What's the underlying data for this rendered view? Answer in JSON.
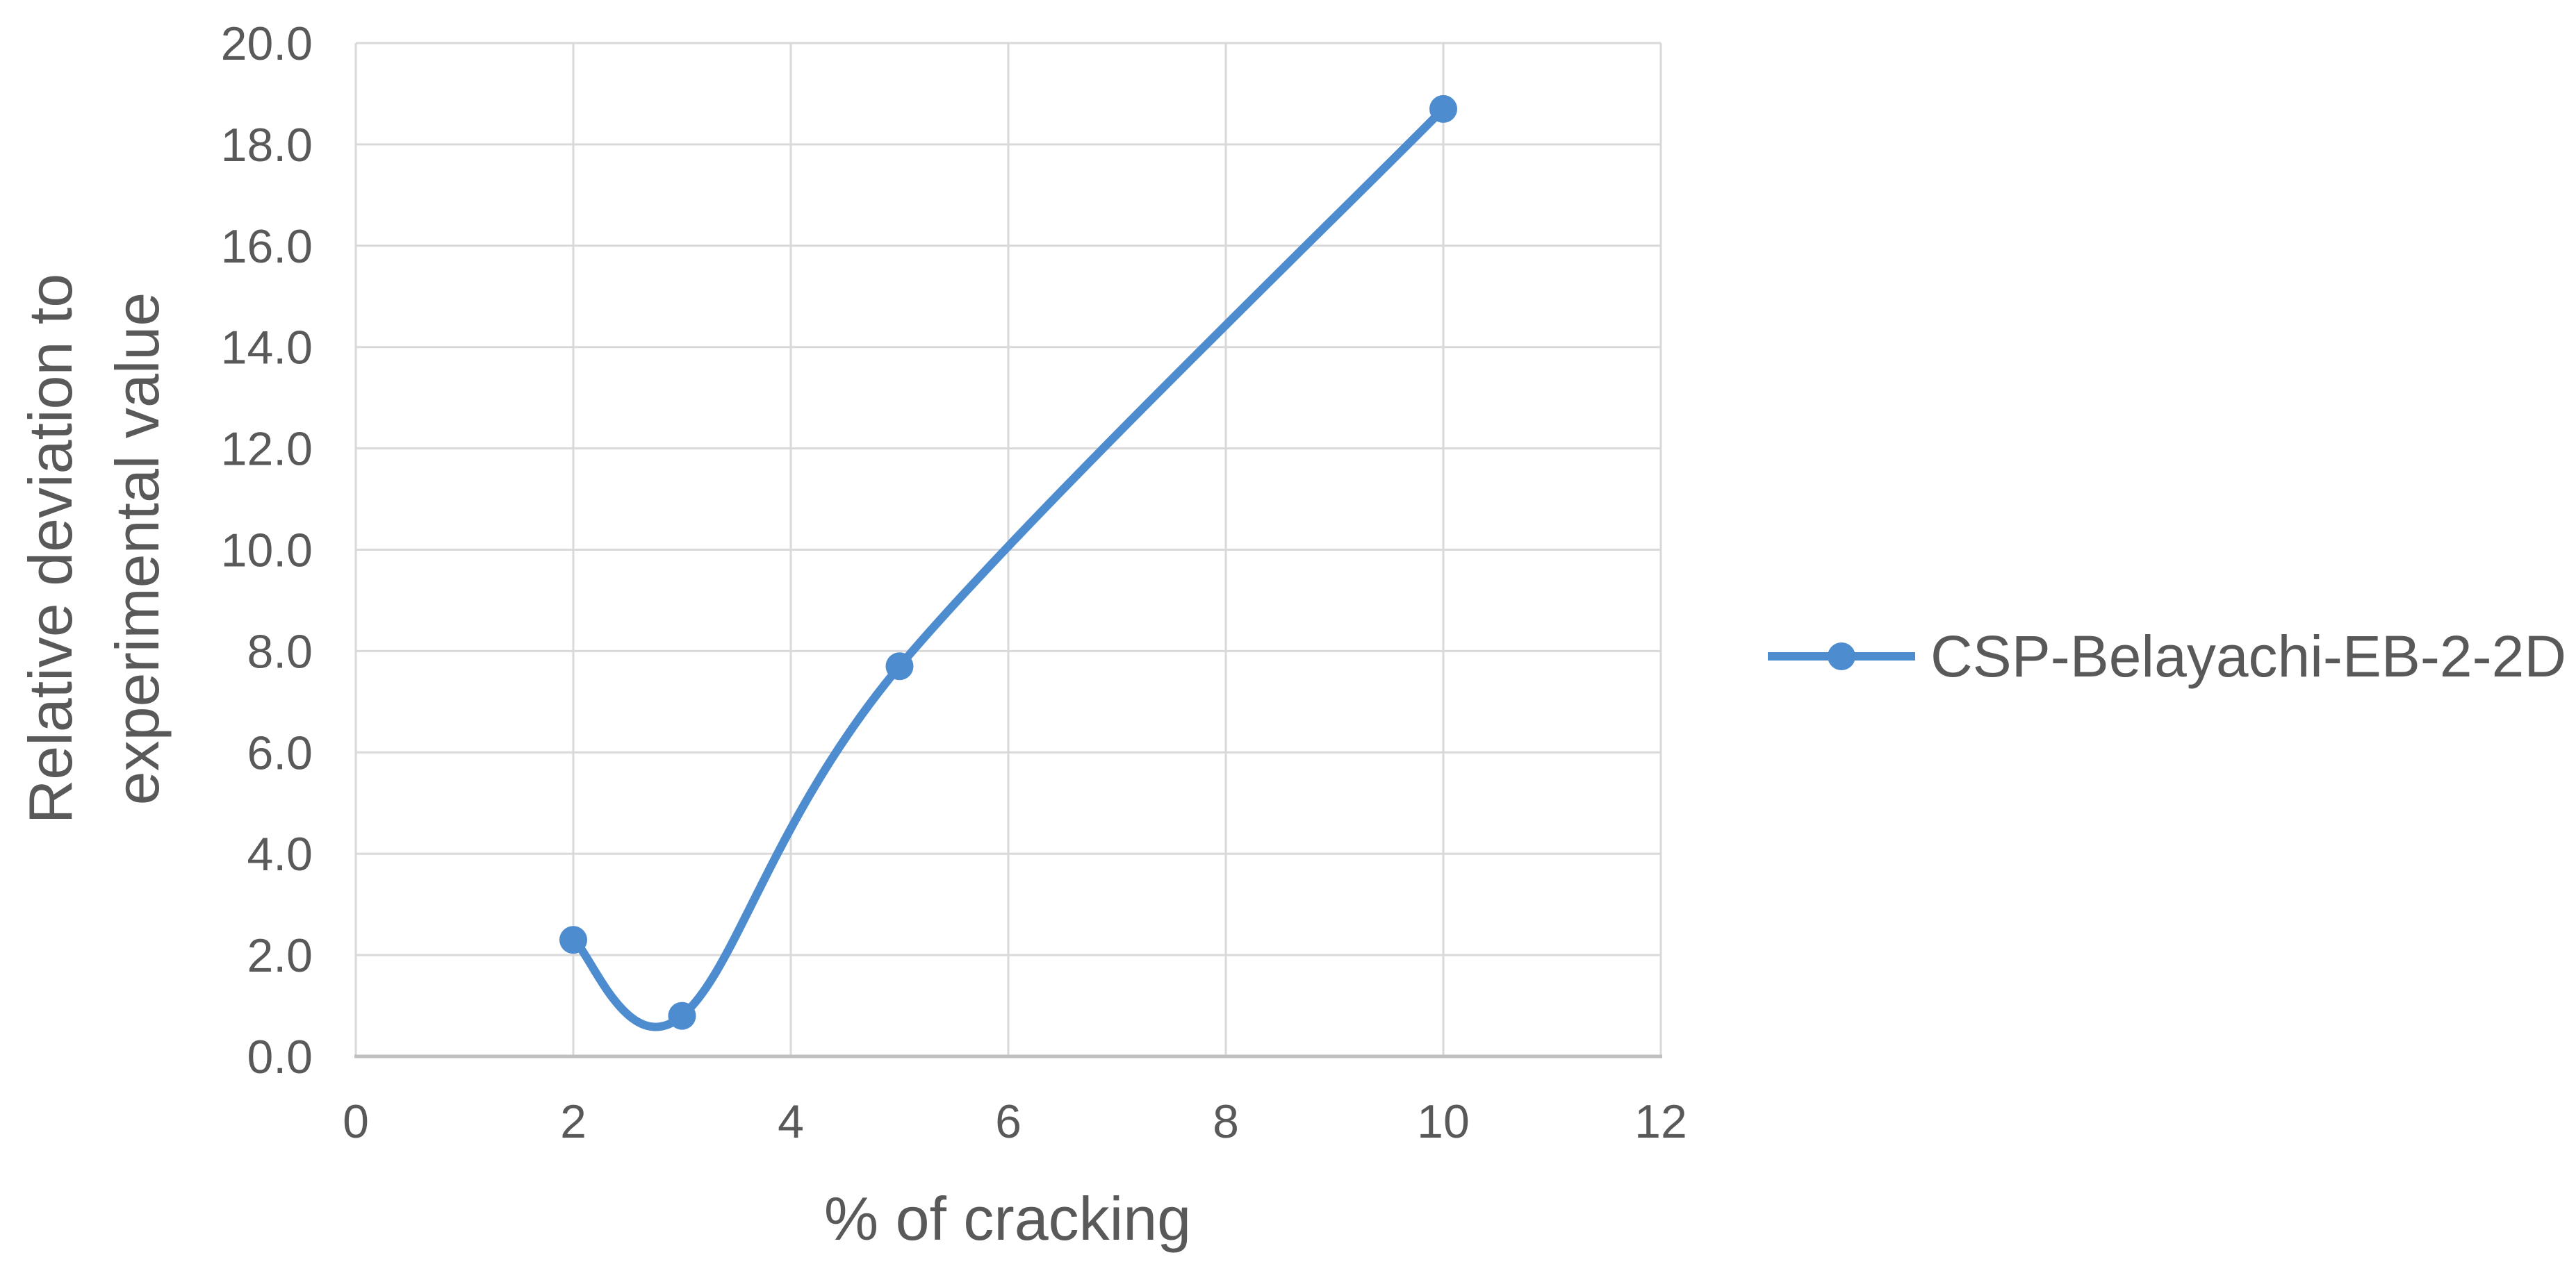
{
  "chart_data": {
    "type": "line",
    "smooth": true,
    "series": [
      {
        "name": "CSP-Belayachi-EB-2-2D",
        "color": "#4e8cd0",
        "x": [
          2,
          3,
          5,
          10
        ],
        "y": [
          2.3,
          0.8,
          7.7,
          18.7
        ]
      }
    ],
    "title": "",
    "xlabel": "% of cracking",
    "ylabel": "Relative deviation to experimental value",
    "ylabel_lines": [
      "Relative deviation to",
      "experimental value"
    ],
    "xlim": [
      0,
      12
    ],
    "ylim": [
      0,
      20
    ],
    "xticks": [
      0,
      2,
      4,
      6,
      8,
      10,
      12
    ],
    "xtick_labels": [
      "0",
      "2",
      "4",
      "6",
      "8",
      "10",
      "12"
    ],
    "yticks": [
      0,
      2,
      4,
      6,
      8,
      10,
      12,
      14,
      16,
      18,
      20
    ],
    "ytick_labels": [
      "0.0",
      "2.0",
      "4.0",
      "6.0",
      "8.0",
      "10.0",
      "12.0",
      "14.0",
      "16.0",
      "18.0",
      "20.0"
    ],
    "grid": true,
    "legend_position": "right",
    "legend_entries": [
      "CSP-Belayachi-EB-2-2D"
    ],
    "marker": "circle"
  },
  "colors": {
    "series_blue": "#4e8cd0",
    "text_gray": "#595959",
    "gridline": "#d9d9d9",
    "axis_line": "#bfbfbf",
    "background": "#ffffff"
  }
}
